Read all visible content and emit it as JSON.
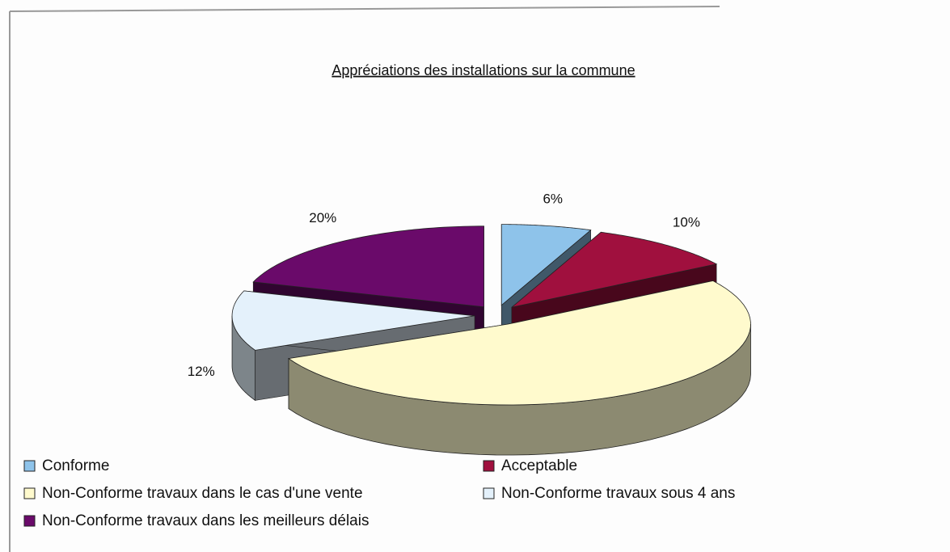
{
  "chart_data": {
    "type": "pie3d",
    "title": "Appréciations des installations sur la commune",
    "categories": [
      "Conforme",
      "Acceptable",
      "Non-Conforme travaux dans le cas d'une vente",
      "Non-Conforme travaux sous 4 ans",
      "Non-Conforme travaux dans les meilleurs délais"
    ],
    "values": [
      6,
      10,
      52,
      12,
      20
    ],
    "value_labels": [
      "6%",
      "10%",
      null,
      "12%",
      "20%"
    ],
    "colors": [
      "#8ec3ea",
      "#a0103e",
      "#fffacd",
      "#e4f1fb",
      "#6a0a6a"
    ],
    "legend": "bottom"
  }
}
